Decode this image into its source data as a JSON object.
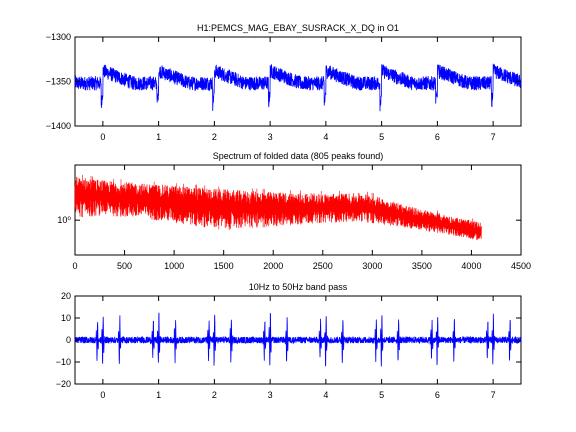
{
  "figure": {
    "background": "#ffffff"
  },
  "chart_data": [
    {
      "type": "line",
      "title": "H1:PEMCS_MAG_EBAY_SUSRACK_X_DQ in O1",
      "xlabel": "",
      "ylabel": "",
      "xlim": [
        -0.5,
        7.5
      ],
      "ylim": [
        -1400,
        -1300
      ],
      "xticks": [
        0,
        1,
        2,
        3,
        4,
        5,
        6,
        7
      ],
      "xtick_labels": [
        "0",
        "1",
        "2",
        "3",
        "4",
        "5",
        "6",
        "7"
      ],
      "yticks": [
        -1400,
        -1350,
        -1300
      ],
      "ytick_labels": [
        "−1400",
        "−1350",
        "−1300"
      ],
      "series": [
        {
          "color": "#0000ff",
          "pattern": "sawtooth",
          "period": 1.0,
          "jump_offset": 0.0,
          "baseline": -1352,
          "ramp_start": -1338,
          "ramp_end": -1352,
          "dip_start": -1376,
          "dip_end": -1360,
          "noise_amplitude": 8
        }
      ]
    },
    {
      "type": "line",
      "title": "Spectrum of folded data (805 peaks found)",
      "xlabel": "",
      "ylabel": "",
      "xlim": [
        0,
        4500
      ],
      "yscale": "log",
      "xticks": [
        0,
        500,
        1000,
        1500,
        2000,
        2500,
        3000,
        3500,
        4000,
        4500
      ],
      "xtick_labels": [
        "0",
        "500",
        "1000",
        "1500",
        "2000",
        "2500",
        "3000",
        "3500",
        "4000",
        "4500"
      ],
      "yticks": [
        1
      ],
      "ytick_labels": [
        "10⁰"
      ],
      "series": [
        {
          "color": "#ff0000",
          "x": [
            0,
            300,
            800,
            1500,
            2000,
            2500,
            2900,
            3400,
            3800,
            4100
          ],
          "upper": [
            2.4,
            2.2,
            2.05,
            1.85,
            1.75,
            1.7,
            1.72,
            1.3,
            1.08,
            0.95
          ],
          "lower": [
            1.05,
            1.1,
            1.0,
            0.82,
            0.88,
            0.95,
            0.97,
            0.84,
            0.74,
            0.66
          ]
        }
      ]
    },
    {
      "type": "line",
      "title": "10Hz to 50Hz band pass",
      "xlabel": "",
      "ylabel": "",
      "xlim": [
        -0.5,
        7.5
      ],
      "ylim": [
        -20,
        20
      ],
      "xticks": [
        0,
        1,
        2,
        3,
        4,
        5,
        6,
        7
      ],
      "xtick_labels": [
        "0",
        "1",
        "2",
        "3",
        "4",
        "5",
        "6",
        "7"
      ],
      "yticks": [
        -20,
        -10,
        0,
        10,
        20
      ],
      "ytick_labels": [
        "−20",
        "−10",
        "0",
        "10",
        "20"
      ],
      "series": [
        {
          "color": "#0000ff",
          "pattern": "bursts",
          "period": 1.0,
          "burst_offsets": [
            -0.1,
            0.0,
            0.3
          ],
          "burst_amplitudes": [
            10,
            13,
            11
          ],
          "noise_amplitude": 1.5
        }
      ]
    }
  ]
}
